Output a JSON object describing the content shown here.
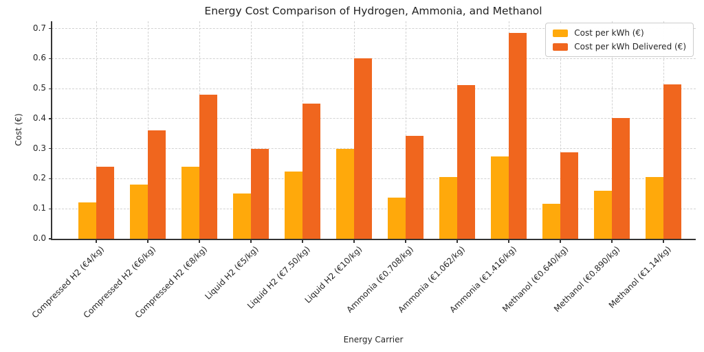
{
  "chart_data": {
    "type": "bar",
    "title": "Energy Cost Comparison of Hydrogen, Ammonia, and Methanol",
    "xlabel": "Energy Carrier",
    "ylabel": "Cost (€)",
    "ylim": [
      0,
      0.72
    ],
    "yticks": [
      0,
      0.1,
      0.2,
      0.3,
      0.4,
      0.5,
      0.6,
      0.7
    ],
    "grid": true,
    "legend_position": "upper right",
    "categories": [
      "Compressed H2 (€4/kg)",
      "Compressed H2 (€6/kg)",
      "Compressed H2 (€8/kg)",
      "Liquid H2 (€5/kg)",
      "Liquid H2 (€7.50/kg)",
      "Liquid H2 (€10/kg)",
      "Ammonia (€0.708/kg)",
      "Ammonia (€1.062/kg)",
      "Ammonia (€1.416/kg)",
      "Methanol (€0.640/kg)",
      "Methanol (€0.890/kg)",
      "Methanol (€1.14/kg)"
    ],
    "series": [
      {
        "name": "Cost per kWh (€)",
        "color": "#FFA90B",
        "values": [
          0.12,
          0.18,
          0.24,
          0.15,
          0.225,
          0.3,
          0.137,
          0.205,
          0.274,
          0.116,
          0.161,
          0.206
        ]
      },
      {
        "name": "Cost per kWh Delivered (€)",
        "color": "#F0661E",
        "values": [
          0.24,
          0.36,
          0.48,
          0.3,
          0.45,
          0.6,
          0.343,
          0.513,
          0.685,
          0.289,
          0.402,
          0.514
        ]
      }
    ]
  }
}
